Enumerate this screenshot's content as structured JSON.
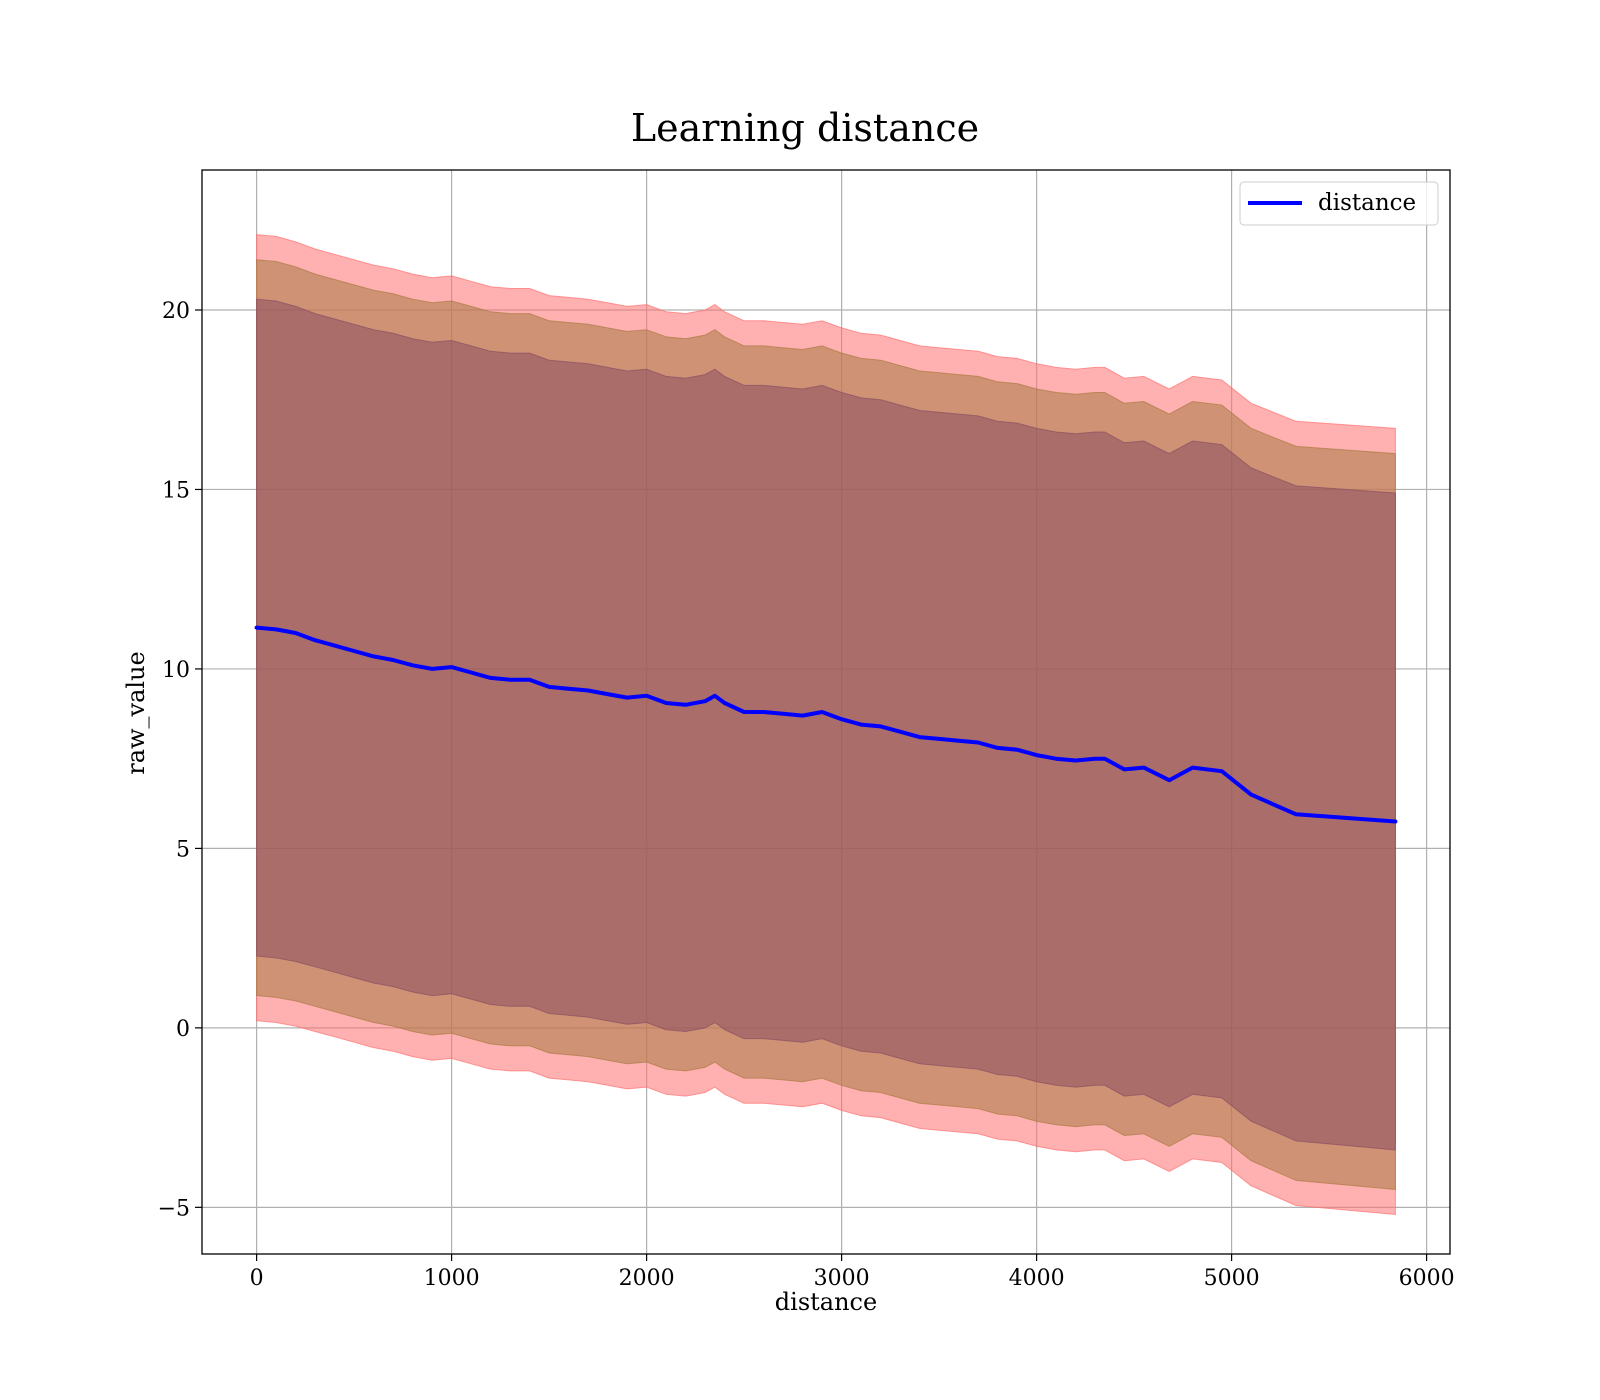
{
  "chart_data": {
    "type": "area",
    "title": "Learning distance",
    "xlabel": "distance",
    "ylabel": "raw_value",
    "xlim": [
      -280,
      6120
    ],
    "ylim": [
      -6.3,
      23.9
    ],
    "xticks": [
      0,
      1000,
      2000,
      3000,
      4000,
      5000,
      6000
    ],
    "xtick_labels": [
      "0",
      "1000",
      "2000",
      "3000",
      "4000",
      "5000",
      "6000"
    ],
    "yticks": [
      -5,
      0,
      5,
      10,
      15,
      20
    ],
    "ytick_labels": [
      "−5",
      "0",
      "5",
      "10",
      "15",
      "20"
    ],
    "grid": true,
    "legend": {
      "position": "top-right",
      "entries": [
        "distance"
      ]
    },
    "x": [
      0,
      100,
      200,
      300,
      400,
      500,
      600,
      700,
      800,
      900,
      1000,
      1100,
      1200,
      1300,
      1400,
      1500,
      1600,
      1700,
      1800,
      1900,
      2000,
      2100,
      2200,
      2300,
      2350,
      2400,
      2500,
      2600,
      2700,
      2800,
      2900,
      3000,
      3100,
      3200,
      3300,
      3400,
      3500,
      3600,
      3700,
      3800,
      3900,
      4000,
      4100,
      4200,
      4300,
      4350,
      4450,
      4550,
      4680,
      4800,
      4950,
      5100,
      5330,
      5840
    ],
    "series": [
      {
        "name": "distance",
        "color": "#0000ff",
        "role": "line",
        "values": [
          11.15,
          11.1,
          11.0,
          10.8,
          10.65,
          10.5,
          10.35,
          10.25,
          10.1,
          10.0,
          10.05,
          9.9,
          9.75,
          9.7,
          9.7,
          9.5,
          9.45,
          9.4,
          9.3,
          9.2,
          9.25,
          9.05,
          9.0,
          9.1,
          9.25,
          9.05,
          8.8,
          8.8,
          8.75,
          8.7,
          8.8,
          8.6,
          8.45,
          8.4,
          8.25,
          8.1,
          8.05,
          8.0,
          7.95,
          7.8,
          7.75,
          7.6,
          7.5,
          7.45,
          7.5,
          7.5,
          7.2,
          7.25,
          6.9,
          7.25,
          7.15,
          6.5,
          5.95,
          5.75
        ]
      },
      {
        "name": "band-outer",
        "color": "#ff7070",
        "role": "band",
        "upper": [
          22.1,
          22.05,
          21.9,
          21.7,
          21.55,
          21.4,
          21.25,
          21.15,
          21.0,
          20.9,
          20.95,
          20.8,
          20.65,
          20.6,
          20.6,
          20.4,
          20.35,
          20.3,
          20.2,
          20.1,
          20.15,
          19.95,
          19.9,
          20.0,
          20.15,
          19.95,
          19.7,
          19.7,
          19.65,
          19.6,
          19.7,
          19.5,
          19.35,
          19.3,
          19.15,
          19.0,
          18.95,
          18.9,
          18.85,
          18.7,
          18.65,
          18.5,
          18.4,
          18.35,
          18.4,
          18.4,
          18.1,
          18.15,
          17.8,
          18.15,
          18.05,
          17.4,
          16.9,
          16.7
        ],
        "lower": [
          0.2,
          0.15,
          0.05,
          -0.1,
          -0.25,
          -0.4,
          -0.55,
          -0.65,
          -0.8,
          -0.9,
          -0.85,
          -1.0,
          -1.15,
          -1.2,
          -1.2,
          -1.4,
          -1.45,
          -1.5,
          -1.6,
          -1.7,
          -1.65,
          -1.85,
          -1.9,
          -1.8,
          -1.65,
          -1.85,
          -2.1,
          -2.1,
          -2.15,
          -2.2,
          -2.1,
          -2.3,
          -2.45,
          -2.5,
          -2.65,
          -2.8,
          -2.85,
          -2.9,
          -2.95,
          -3.1,
          -3.15,
          -3.3,
          -3.4,
          -3.45,
          -3.4,
          -3.4,
          -3.7,
          -3.65,
          -4.0,
          -3.65,
          -3.75,
          -4.4,
          -4.95,
          -5.2
        ]
      },
      {
        "name": "band-middle",
        "color": "#a97a43",
        "role": "band",
        "upper": [
          21.4,
          21.35,
          21.2,
          21.0,
          20.85,
          20.7,
          20.55,
          20.45,
          20.3,
          20.2,
          20.25,
          20.1,
          19.95,
          19.9,
          19.9,
          19.7,
          19.65,
          19.6,
          19.5,
          19.4,
          19.45,
          19.25,
          19.2,
          19.3,
          19.45,
          19.25,
          19.0,
          19.0,
          18.95,
          18.9,
          19.0,
          18.8,
          18.65,
          18.6,
          18.45,
          18.3,
          18.25,
          18.2,
          18.15,
          18.0,
          17.95,
          17.8,
          17.7,
          17.65,
          17.7,
          17.7,
          17.4,
          17.45,
          17.1,
          17.45,
          17.35,
          16.7,
          16.2,
          16.0
        ],
        "lower": [
          0.9,
          0.85,
          0.75,
          0.6,
          0.45,
          0.3,
          0.15,
          0.05,
          -0.1,
          -0.2,
          -0.15,
          -0.3,
          -0.45,
          -0.5,
          -0.5,
          -0.7,
          -0.75,
          -0.8,
          -0.9,
          -1.0,
          -0.95,
          -1.15,
          -1.2,
          -1.1,
          -0.95,
          -1.15,
          -1.4,
          -1.4,
          -1.45,
          -1.5,
          -1.4,
          -1.6,
          -1.75,
          -1.8,
          -1.95,
          -2.1,
          -2.15,
          -2.2,
          -2.25,
          -2.4,
          -2.45,
          -2.6,
          -2.7,
          -2.75,
          -2.7,
          -2.7,
          -3.0,
          -2.95,
          -3.3,
          -2.95,
          -3.05,
          -3.7,
          -4.25,
          -4.5
        ]
      },
      {
        "name": "band-inner",
        "color": "#8a4e62",
        "role": "band",
        "upper": [
          20.3,
          20.25,
          20.1,
          19.9,
          19.75,
          19.6,
          19.45,
          19.35,
          19.2,
          19.1,
          19.15,
          19.0,
          18.85,
          18.8,
          18.8,
          18.6,
          18.55,
          18.5,
          18.4,
          18.3,
          18.35,
          18.15,
          18.1,
          18.2,
          18.35,
          18.15,
          17.9,
          17.9,
          17.85,
          17.8,
          17.9,
          17.7,
          17.55,
          17.5,
          17.35,
          17.2,
          17.15,
          17.1,
          17.05,
          16.9,
          16.85,
          16.7,
          16.6,
          16.55,
          16.6,
          16.6,
          16.3,
          16.35,
          16.0,
          16.35,
          16.25,
          15.6,
          15.1,
          14.9
        ],
        "lower": [
          2.0,
          1.95,
          1.85,
          1.7,
          1.55,
          1.4,
          1.25,
          1.15,
          1.0,
          0.9,
          0.95,
          0.8,
          0.65,
          0.6,
          0.6,
          0.4,
          0.35,
          0.3,
          0.2,
          0.1,
          0.15,
          -0.05,
          -0.1,
          0.0,
          0.15,
          -0.05,
          -0.3,
          -0.3,
          -0.35,
          -0.4,
          -0.3,
          -0.5,
          -0.65,
          -0.7,
          -0.85,
          -1.0,
          -1.05,
          -1.1,
          -1.15,
          -1.3,
          -1.35,
          -1.5,
          -1.6,
          -1.65,
          -1.6,
          -1.6,
          -1.9,
          -1.85,
          -2.2,
          -1.85,
          -1.95,
          -2.6,
          -3.15,
          -3.4
        ]
      }
    ]
  }
}
